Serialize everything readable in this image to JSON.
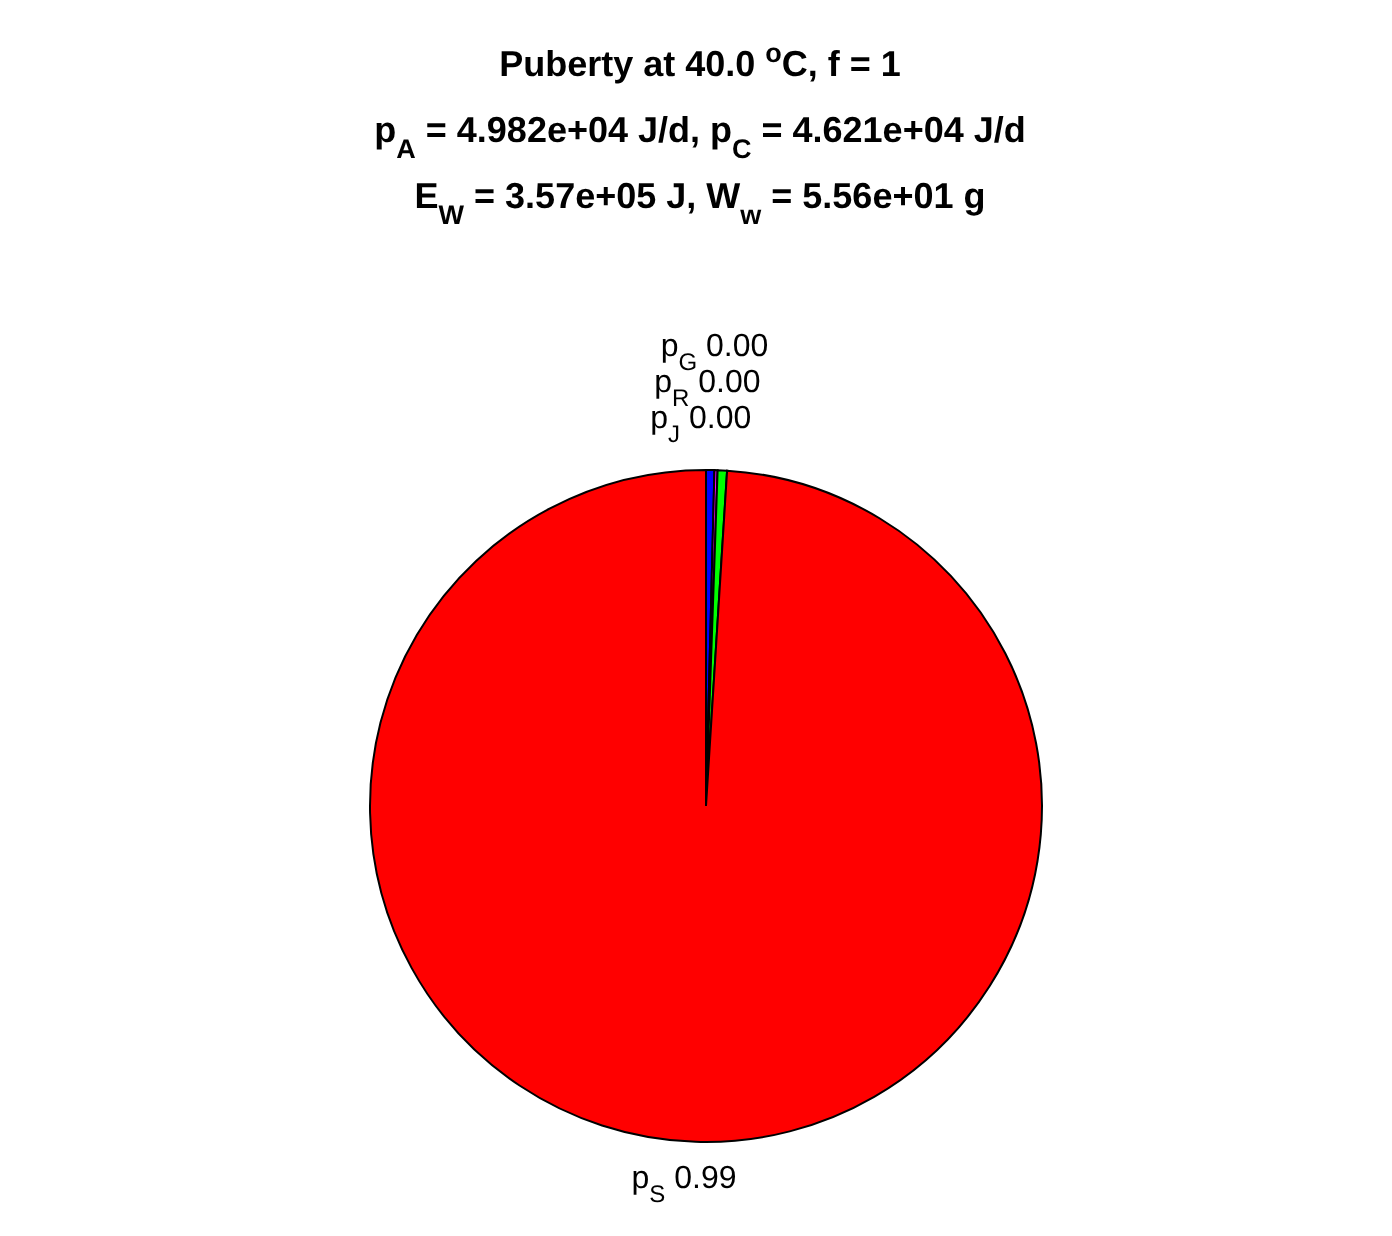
{
  "chart_data": {
    "type": "pie",
    "title": "Puberty at 40.0 $^{o}$C, f = 1",
    "subtitle": "p$_{A}$ = 4.982e+04 J/d,  p$_{C}$ = 4.621e+04 J/d\nE$_{W}$ = 3.57e+05 J, W$_{w}$ = 5.56e+01 g",
    "categories": [
      "p$_{J}$",
      "p$_{R}$",
      "p$_{G}$",
      "p$_{S}$"
    ],
    "values": [
      0.004,
      0.0015,
      0.0045,
      0.99
    ],
    "value_labels": [
      "0.00",
      "0.00",
      "0.00",
      "0.99"
    ],
    "colors": [
      "#0000ff",
      "#ff00ff",
      "#00ff00",
      "#ff0000"
    ]
  }
}
